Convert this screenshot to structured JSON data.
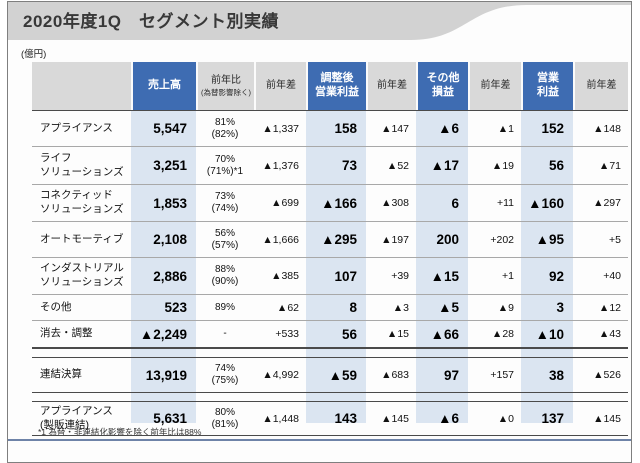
{
  "title": "2020年度1Q　セグメント別実績",
  "unit_label": "(億円)",
  "footnote": "*1 為替・非連結化影響を除く前年比は88%",
  "colors": {
    "header_blue": "#3e6cb2",
    "header_gray": "#d9d9d9",
    "column_stripe": "#dbe5f1",
    "title_band_gray": "#d2d2d2",
    "bottom_rule_blue": "#6e83a8"
  },
  "table": {
    "columns": [
      {
        "key": "segment",
        "label": "",
        "style": "gray"
      },
      {
        "key": "sales",
        "label": "売上高",
        "style": "blue"
      },
      {
        "key": "yoy_ratio",
        "label": "前年比",
        "sublabel": "(為替影響除く)",
        "style": "gray"
      },
      {
        "key": "yoy_diff_sales",
        "label": "前年差",
        "style": "gray"
      },
      {
        "key": "adjusted_op",
        "label": "調整後\n営業利益",
        "style": "blue"
      },
      {
        "key": "yoy_diff_adj_op",
        "label": "前年差",
        "style": "gray"
      },
      {
        "key": "other_income",
        "label": "その他\n損益",
        "style": "blue"
      },
      {
        "key": "yoy_diff_other",
        "label": "前年差",
        "style": "gray"
      },
      {
        "key": "op",
        "label": "営業\n利益",
        "style": "blue"
      },
      {
        "key": "yoy_diff_op",
        "label": "前年差",
        "style": "gray"
      }
    ],
    "rows": [
      {
        "cells": [
          "アプライアンス",
          "5,547",
          "81%\n(82%)",
          "▲1,337",
          "158",
          "▲147",
          "▲6",
          "▲1",
          "152",
          "▲148"
        ]
      },
      {
        "cells": [
          "ライフ\nソリューションズ",
          "3,251",
          "70%\n(71%)*1",
          "▲1,376",
          "73",
          "▲52",
          "▲17",
          "▲19",
          "56",
          "▲71"
        ]
      },
      {
        "cells": [
          "コネクティッド\nソリューションズ",
          "1,853",
          "73%\n(74%)",
          "▲699",
          "▲166",
          "▲308",
          "6",
          "+11",
          "▲160",
          "▲297"
        ]
      },
      {
        "cells": [
          "オートモーティブ",
          "2,108",
          "56%\n(57%)",
          "▲1,666",
          "▲295",
          "▲197",
          "200",
          "+202",
          "▲95",
          "+5"
        ]
      },
      {
        "cells": [
          "インダストリアル\nソリューションズ",
          "2,886",
          "88%\n(90%)",
          "▲385",
          "107",
          "+39",
          "▲15",
          "+1",
          "92",
          "+40"
        ]
      },
      {
        "cells": [
          "その他",
          "523",
          "89%",
          "▲62",
          "8",
          "▲3",
          "▲5",
          "▲9",
          "3",
          "▲12"
        ]
      },
      {
        "cells": [
          "消去・調整",
          "▲2,249",
          "-",
          "+533",
          "56",
          "▲15",
          "▲66",
          "▲28",
          "▲10",
          "▲43"
        ]
      }
    ],
    "consolidated_row": {
      "cells": [
        "連結決算",
        "13,919",
        "74%\n(75%)",
        "▲4,992",
        "▲59",
        "▲683",
        "97",
        "+157",
        "38",
        "▲526"
      ]
    },
    "appliance_combined_row": {
      "cells": [
        "アプライアンス\n(製販連結)",
        "5,631",
        "80%\n(81%)",
        "▲1,448",
        "143",
        "▲145",
        "▲6",
        "▲0",
        "137",
        "▲145"
      ]
    }
  }
}
